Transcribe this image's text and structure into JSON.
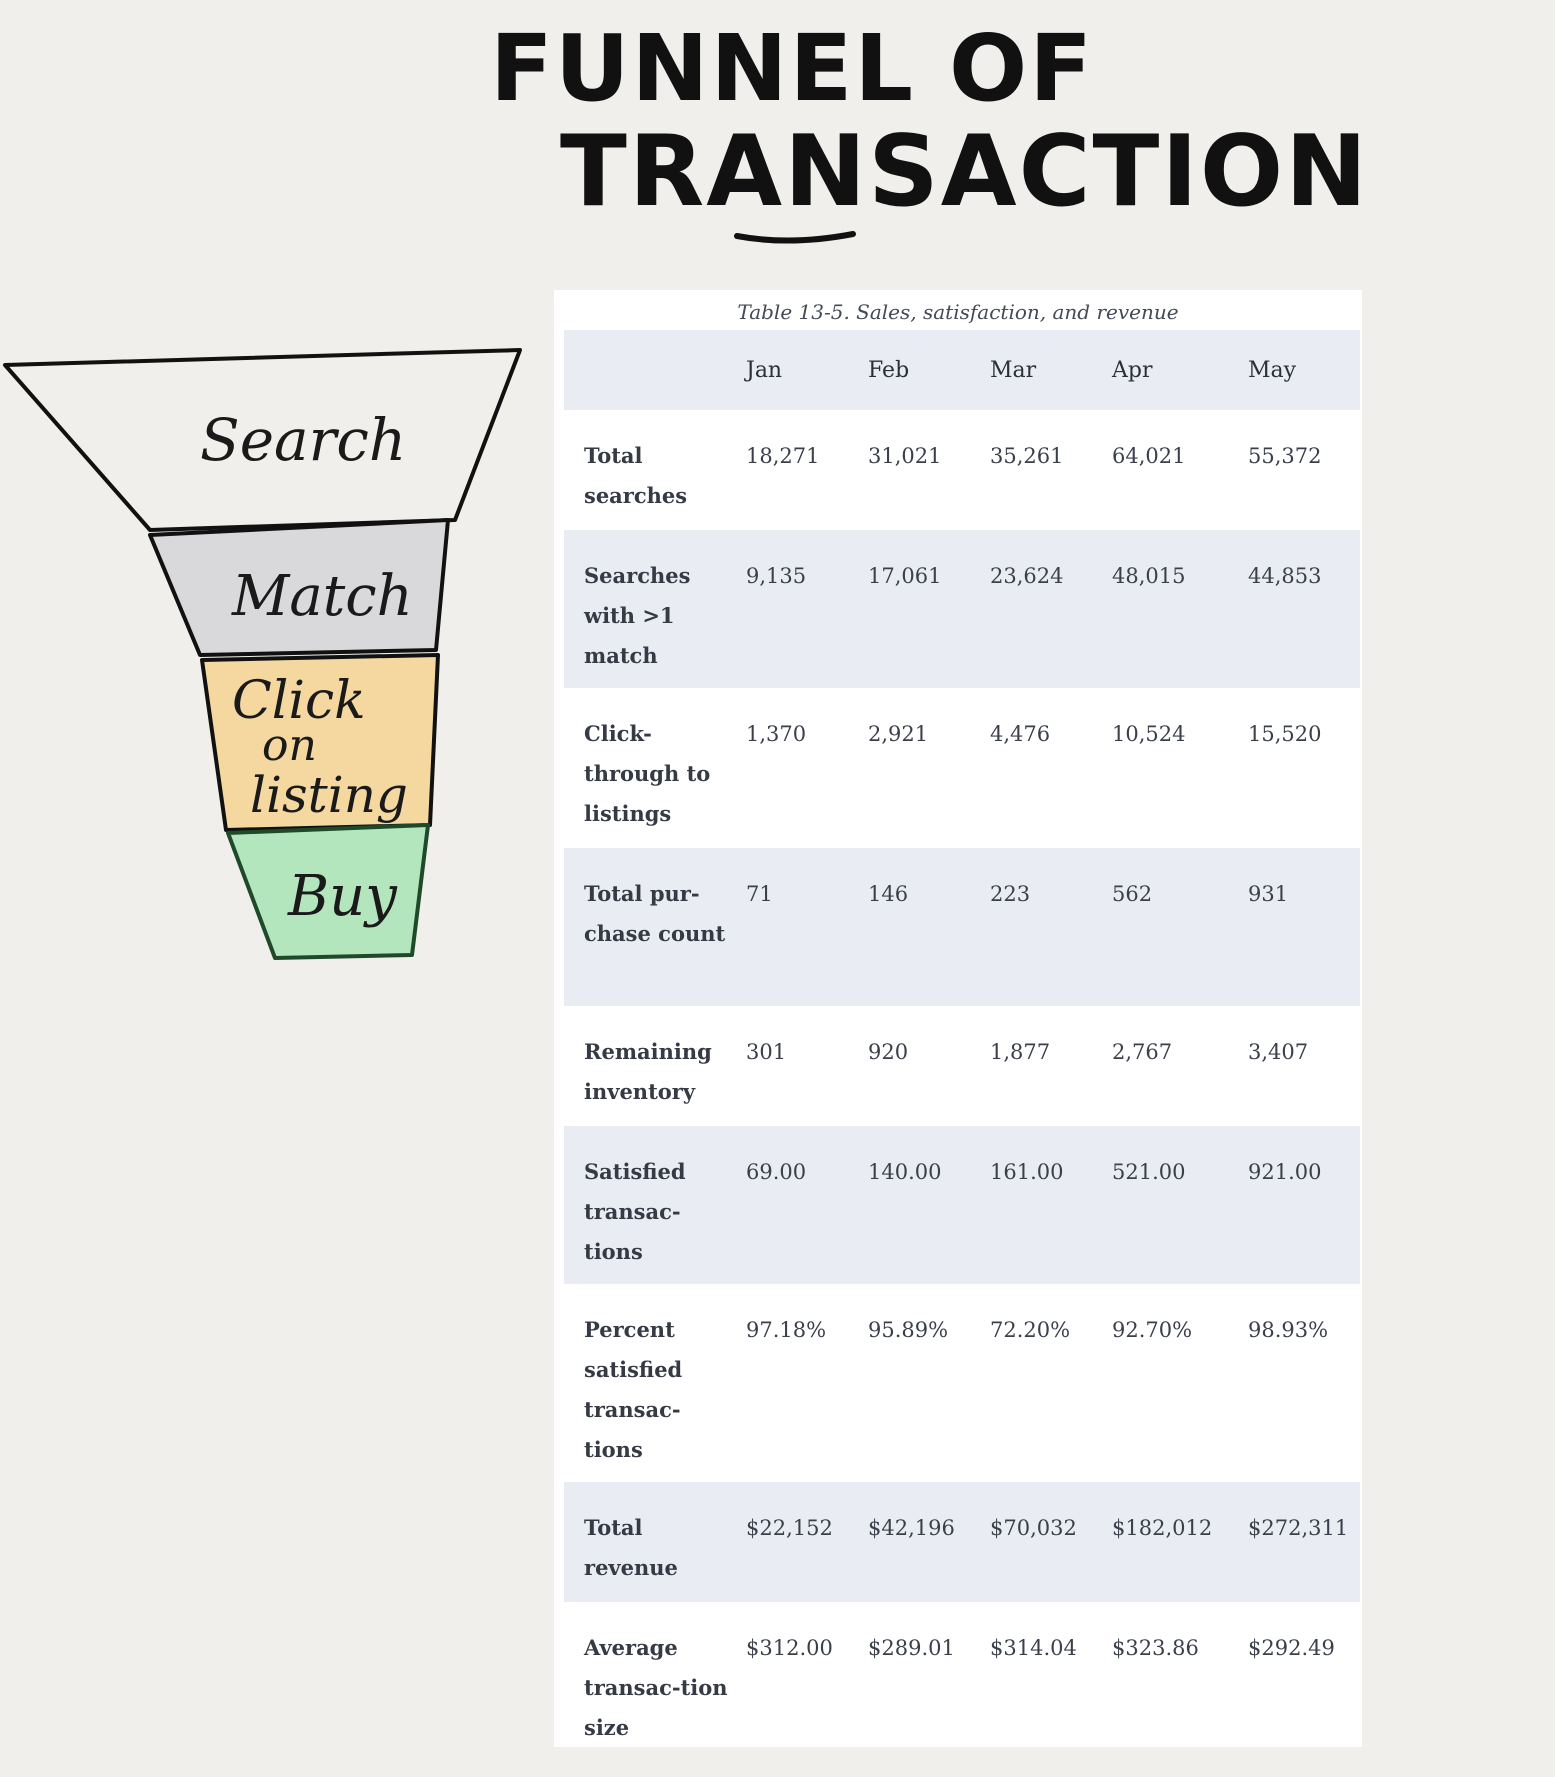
{
  "title": {
    "line1": "FUNNEL OF",
    "line2": "TRANSACTION"
  },
  "funnel": {
    "stages": [
      {
        "label": "Search",
        "color": "#f0efeb"
      },
      {
        "label": "Match",
        "color": "#d9d8da"
      },
      {
        "label": "Click",
        "color": "#f4d8a0"
      },
      {
        "label": "on",
        "color": "#f4d8a0"
      },
      {
        "label": "listing",
        "color": "#f4d8a0"
      },
      {
        "label": "Buy",
        "color": "#b3e6bd"
      }
    ]
  },
  "table": {
    "caption": "Table 13-5. Sales, satisfaction, and revenue",
    "columns": [
      "",
      "Jan",
      "Feb",
      "Mar",
      "Apr",
      "May"
    ],
    "rows": [
      {
        "label": "Total searches",
        "values": [
          "18,271",
          "31,021",
          "35,261",
          "64,021",
          "55,372"
        ]
      },
      {
        "label": "Searches with >1 match",
        "values": [
          "9,135",
          "17,061",
          "23,624",
          "48,015",
          "44,853"
        ]
      },
      {
        "label": "Click-through to listings",
        "values": [
          "1,370",
          "2,921",
          "4,476",
          "10,524",
          "15,520"
        ]
      },
      {
        "label": "Total pur-chase count",
        "values": [
          "71",
          "146",
          "223",
          "562",
          "931"
        ]
      },
      {
        "label": "Remaining inventory",
        "values": [
          "301",
          "920",
          "1,877",
          "2,767",
          "3,407"
        ]
      },
      {
        "label": "Satisfied transac-tions",
        "values": [
          "69.00",
          "140.00",
          "161.00",
          "521.00",
          "921.00"
        ]
      },
      {
        "label": "Percent satisfied transac-tions",
        "values": [
          "97.18%",
          "95.89%",
          "72.20%",
          "92.70%",
          "98.93%"
        ]
      },
      {
        "label": "Total revenue",
        "values": [
          "$22,152",
          "$42,196",
          "$70,032",
          "$182,012",
          "$272,311"
        ]
      },
      {
        "label": "Average transac-tion size",
        "values": [
          "$312.00",
          "$289.01",
          "$314.04",
          "$323.86",
          "$292.49"
        ]
      }
    ]
  }
}
